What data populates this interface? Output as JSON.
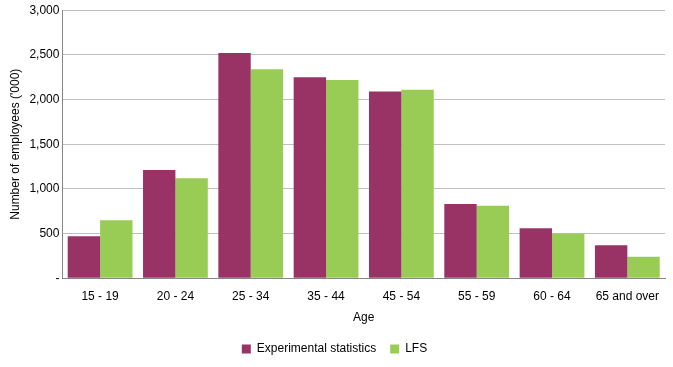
{
  "chart_data": {
    "type": "bar",
    "x_label": "Age",
    "y_label": "Number of employees ('000)",
    "categories": [
      "15 - 19",
      "20 - 24",
      "25 - 34",
      "35 - 44",
      "45 - 54",
      "55 - 59",
      "60 - 64",
      "65 and over"
    ],
    "series": [
      {
        "name": "Experimental statistics",
        "color": "#993366",
        "values": [
          470,
          1210,
          2520,
          2250,
          2090,
          830,
          560,
          370
        ]
      },
      {
        "name": "LFS",
        "color": "#99cc55",
        "values": [
          650,
          1120,
          2340,
          2220,
          2110,
          810,
          500,
          240
        ]
      }
    ],
    "ylim": [
      0,
      3000
    ],
    "yticks": [
      {
        "value": 0,
        "label": "-"
      },
      500,
      {
        "value": 1000,
        "label": "1,000"
      },
      {
        "value": 1500,
        "label": "1,500"
      },
      {
        "value": 2000,
        "label": "2,000"
      },
      {
        "value": 2500,
        "label": "2,500"
      },
      {
        "value": 3000,
        "label": "3,000"
      }
    ],
    "grid": true,
    "legend": "bottom"
  }
}
